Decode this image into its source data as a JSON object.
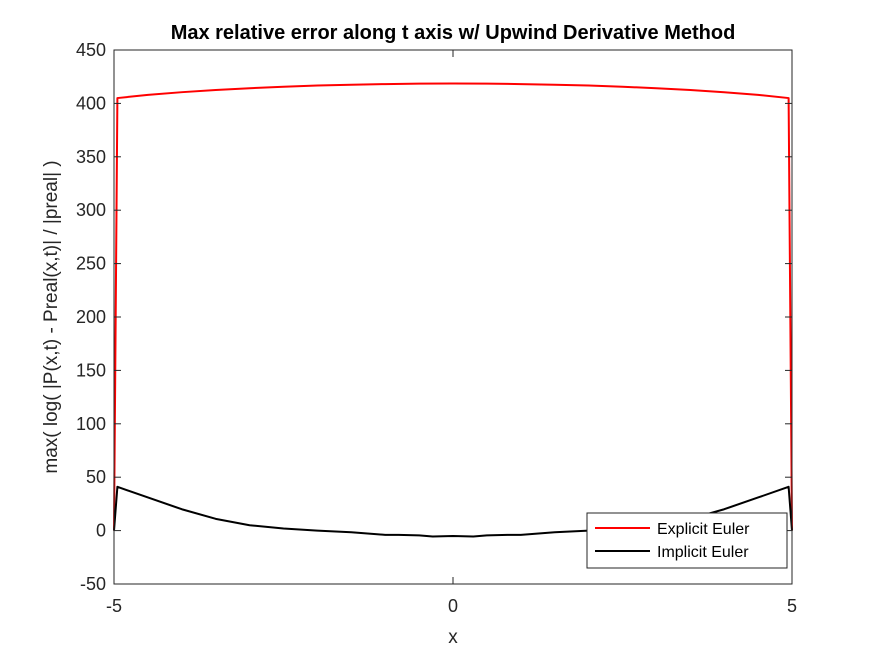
{
  "chart_data": {
    "type": "line",
    "title": "Max relative error along t axis w/ Upwind Derivative Method",
    "xlabel": "x",
    "ylabel": "max( log( |P(x,t) - Preal(x,t)| / |preal| )",
    "xlim": [
      -5,
      5
    ],
    "ylim": [
      -50,
      450
    ],
    "xticks": [
      -5,
      0,
      5
    ],
    "xtick_labels": [
      "-5",
      "0",
      "5"
    ],
    "yticks": [
      -50,
      0,
      50,
      100,
      150,
      200,
      250,
      300,
      350,
      400,
      450
    ],
    "ytick_labels": [
      "-50",
      "0",
      "50",
      "100",
      "150",
      "200",
      "250",
      "300",
      "350",
      "400",
      "450"
    ],
    "grid": false,
    "legend_position": "bottom-right",
    "series": [
      {
        "name": "Explicit Euler",
        "color": "#ff0000",
        "x": [
          -5.0,
          -4.95,
          -4.5,
          -4.0,
          -3.5,
          -3.0,
          -2.5,
          -2.0,
          -1.5,
          -1.0,
          -0.5,
          0.0,
          0.5,
          1.0,
          1.5,
          2.0,
          2.5,
          3.0,
          3.5,
          4.0,
          4.5,
          4.95,
          5.0
        ],
        "y": [
          0,
          405,
          408,
          410.5,
          412.5,
          414.2,
          415.6,
          416.7,
          417.5,
          418.1,
          418.5,
          418.6,
          418.5,
          418.1,
          417.5,
          416.7,
          415.6,
          414.2,
          412.5,
          410.5,
          408,
          405,
          0
        ]
      },
      {
        "name": "Implicit Euler",
        "color": "#000000",
        "x": [
          -5.0,
          -4.95,
          -4.5,
          -4.0,
          -3.5,
          -3.0,
          -2.5,
          -2.0,
          -1.5,
          -1.0,
          -0.8,
          -0.5,
          -0.3,
          0.0,
          0.3,
          0.5,
          0.8,
          1.0,
          1.5,
          2.0,
          2.5,
          3.0,
          3.5,
          4.0,
          4.5,
          4.95,
          5.0
        ],
        "y": [
          0,
          41,
          31,
          20,
          11,
          5,
          2,
          0,
          -1.5,
          -4,
          -4,
          -4.5,
          -5.5,
          -5,
          -5.5,
          -4.5,
          -4,
          -4,
          -1.5,
          0,
          2,
          5,
          11,
          20,
          31,
          41,
          0
        ]
      }
    ]
  }
}
